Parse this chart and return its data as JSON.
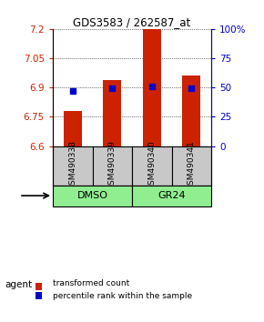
{
  "title": "GDS3583 / 262587_at",
  "samples": [
    "GSM490338",
    "GSM490339",
    "GSM490340",
    "GSM490341"
  ],
  "red_values": [
    6.78,
    6.94,
    7.2,
    6.96
  ],
  "blue_values": [
    6.885,
    6.898,
    6.908,
    6.898
  ],
  "ylim": [
    6.6,
    7.2
  ],
  "yticks_left": [
    6.6,
    6.75,
    6.9,
    7.05,
    7.2
  ],
  "yticks_right_vals": [
    6.6,
    6.75,
    6.9,
    7.05,
    7.2
  ],
  "yticks_right_labels": [
    "0",
    "25",
    "50",
    "75",
    "100%"
  ],
  "bar_width": 0.45,
  "base_value": 6.6,
  "group_dmso": {
    "label": "DMSO",
    "color": "#90EE90"
  },
  "group_gr24": {
    "label": "GR24",
    "color": "#90EE90"
  },
  "agent_label": "agent",
  "red_color": "#CC2200",
  "blue_color": "#0000CC",
  "left_tick_color": "#CC2200",
  "right_tick_color": "#0000CC",
  "sample_box_color": "#C8C8C8",
  "legend_red": "transformed count",
  "legend_blue": "percentile rank within the sample"
}
